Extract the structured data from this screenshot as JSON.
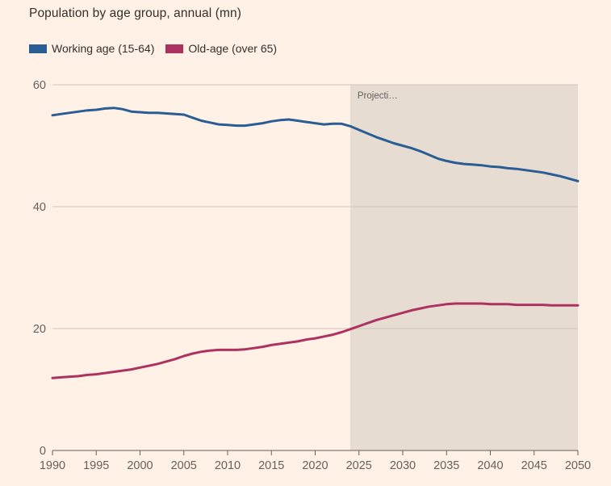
{
  "header": {
    "title": "Population by age group, annual (mn)"
  },
  "legend": [
    {
      "label": "Working age (15-64)",
      "color": "#2A5D94"
    },
    {
      "label": "Old-age (over 65)",
      "color": "#AD325F"
    }
  ],
  "projection": {
    "label": "Projecti…",
    "start_year": 2024
  },
  "colors": {
    "background": "#FFF1E5",
    "projection_region": "#E7DCD2",
    "gridline": "#CFC4BA",
    "axis": "#66605C",
    "title_text": "#33302E",
    "tick_label": "#66605C"
  },
  "chart_data": {
    "type": "line",
    "title": "Population by age group, annual (mn)",
    "xlabel": "",
    "ylabel": "",
    "xlim": [
      1990,
      2050
    ],
    "ylim": [
      0,
      60
    ],
    "x_ticks": [
      1990,
      1995,
      2000,
      2005,
      2010,
      2015,
      2020,
      2025,
      2030,
      2035,
      2040,
      2045,
      2050
    ],
    "y_ticks": [
      0,
      20,
      40,
      60
    ],
    "grid": "horizontal",
    "legend_position": "top-left",
    "projection_start": 2024,
    "x": [
      1990,
      1991,
      1992,
      1993,
      1994,
      1995,
      1996,
      1997,
      1998,
      1999,
      2000,
      2001,
      2002,
      2003,
      2004,
      2005,
      2006,
      2007,
      2008,
      2009,
      2010,
      2011,
      2012,
      2013,
      2014,
      2015,
      2016,
      2017,
      2018,
      2019,
      2020,
      2021,
      2022,
      2023,
      2024,
      2025,
      2026,
      2027,
      2028,
      2029,
      2030,
      2031,
      2032,
      2033,
      2034,
      2035,
      2036,
      2037,
      2038,
      2039,
      2040,
      2041,
      2042,
      2043,
      2044,
      2045,
      2046,
      2047,
      2048,
      2049,
      2050
    ],
    "series": [
      {
        "name": "Working age (15-64)",
        "color": "#2A5D94",
        "values": [
          55.0,
          55.2,
          55.4,
          55.6,
          55.8,
          55.9,
          56.1,
          56.2,
          56.0,
          55.6,
          55.5,
          55.4,
          55.4,
          55.3,
          55.2,
          55.1,
          54.6,
          54.1,
          53.8,
          53.5,
          53.4,
          53.3,
          53.3,
          53.5,
          53.7,
          54.0,
          54.2,
          54.3,
          54.1,
          53.9,
          53.7,
          53.5,
          53.6,
          53.6,
          53.2,
          52.6,
          52.0,
          51.4,
          50.9,
          50.4,
          50.0,
          49.6,
          49.1,
          48.5,
          47.9,
          47.5,
          47.2,
          47.0,
          46.9,
          46.8,
          46.6,
          46.5,
          46.3,
          46.2,
          46.0,
          45.8,
          45.6,
          45.3,
          45.0,
          44.6,
          44.2
        ]
      },
      {
        "name": "Old-age (over 65)",
        "color": "#AD325F",
        "values": [
          11.9,
          12.0,
          12.1,
          12.2,
          12.4,
          12.5,
          12.7,
          12.9,
          13.1,
          13.3,
          13.6,
          13.9,
          14.2,
          14.6,
          15.0,
          15.5,
          15.9,
          16.2,
          16.4,
          16.5,
          16.5,
          16.5,
          16.6,
          16.8,
          17.0,
          17.3,
          17.5,
          17.7,
          17.9,
          18.2,
          18.4,
          18.7,
          19.0,
          19.4,
          19.9,
          20.4,
          20.9,
          21.4,
          21.8,
          22.2,
          22.6,
          23.0,
          23.3,
          23.6,
          23.8,
          24.0,
          24.1,
          24.1,
          24.1,
          24.1,
          24.0,
          24.0,
          24.0,
          23.9,
          23.9,
          23.9,
          23.9,
          23.8,
          23.8,
          23.8,
          23.8
        ]
      }
    ]
  }
}
